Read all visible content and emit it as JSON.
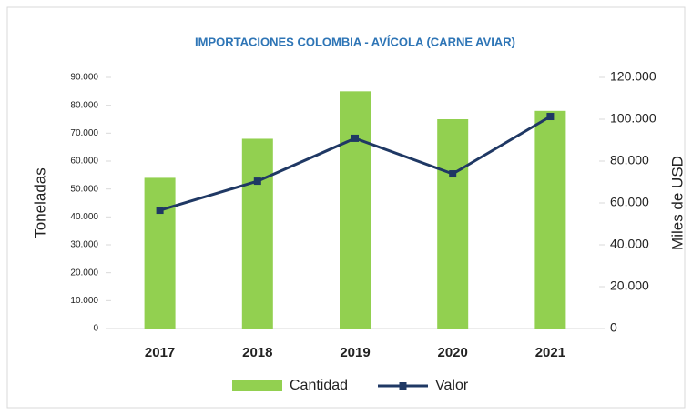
{
  "chart_data": {
    "type": "bar_line",
    "title": "IMPORTACIONES COLOMBIA - AVÍCOLA (CARNE AVIAR)",
    "y_label": "Toneladas",
    "y2_label": "Miles de USD",
    "categories": [
      "2017",
      "2018",
      "2019",
      "2020",
      "2021"
    ],
    "series": [
      {
        "name": "Cantidad",
        "type": "bar",
        "color": "#92d050",
        "values": [
          54000,
          68000,
          85000,
          75000,
          78000
        ]
      },
      {
        "name": "Valor",
        "type": "line",
        "color": "#1f3864",
        "axis": "y2",
        "values": [
          56500,
          70400,
          90900,
          73900,
          101300
        ]
      }
    ],
    "ylim": [
      0,
      90000
    ],
    "yticks": [
      0,
      {
        "value": 10000,
        "label": "10.000"
      },
      {
        "value": 20000,
        "label": "20.000"
      },
      {
        "value": 30000,
        "label": "30.000"
      },
      {
        "value": 40000,
        "label": "40.000"
      },
      {
        "value": 50000,
        "label": "50.000"
      },
      {
        "value": 60000,
        "label": "60.000"
      },
      {
        "value": 70000,
        "label": "70.000"
      },
      {
        "value": 80000,
        "label": "80.000"
      },
      {
        "value": 90000,
        "label": "90.000"
      }
    ],
    "y2lim": [
      0,
      120000
    ],
    "y2ticks": [
      0,
      {
        "value": 20000,
        "label": "20.000"
      },
      {
        "value": 40000,
        "label": "40.000"
      },
      {
        "value": 60000,
        "label": "60.000"
      },
      {
        "value": 80000,
        "label": "80.000"
      },
      {
        "value": 100000,
        "label": "100.000"
      },
      {
        "value": 120000,
        "label": "120.000"
      }
    ],
    "grid": false,
    "legend": "bottom"
  }
}
